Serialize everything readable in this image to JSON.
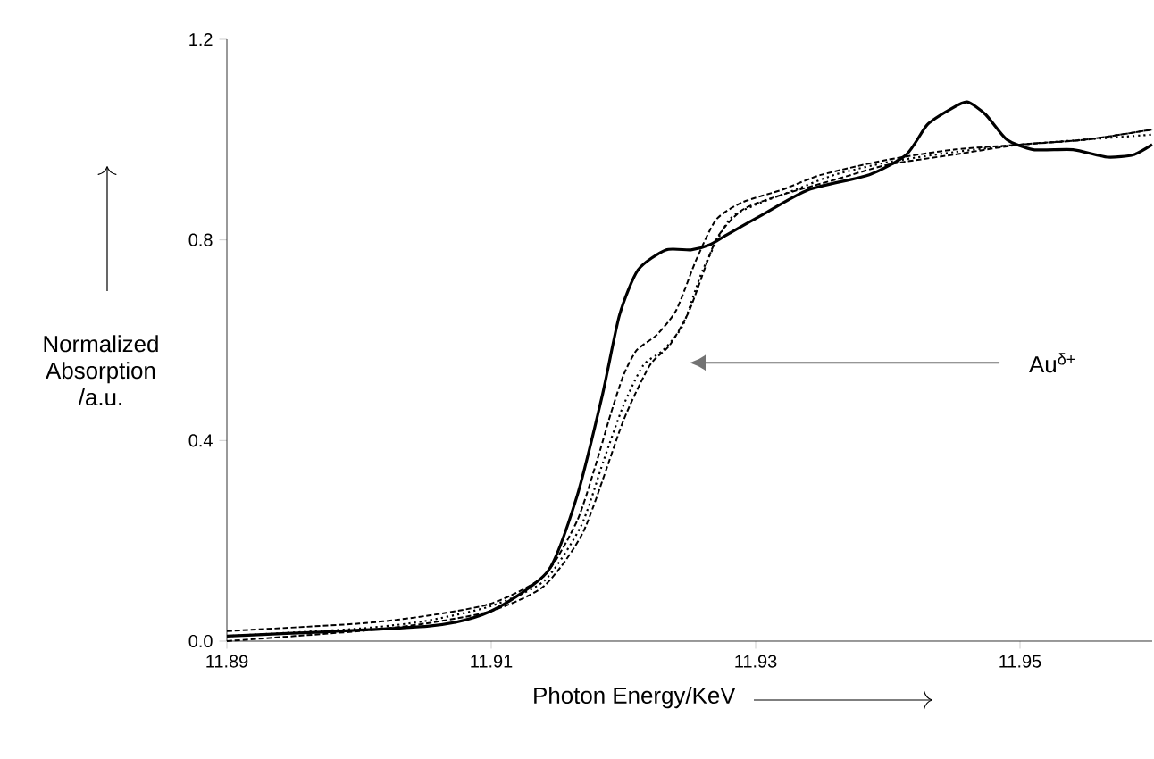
{
  "chart_data": {
    "type": "line",
    "xlabel": "Photon Energy/KeV",
    "ylabel": "Normalized Absorption /a.u.",
    "xlim": [
      11.89,
      11.96
    ],
    "xticks": [
      11.89,
      11.91,
      11.93,
      11.95
    ],
    "ylim": [
      0,
      1.2
    ],
    "yticks": [
      {
        "value": 0,
        "label": "0.0"
      },
      {
        "value": 0.4,
        "label": "0.4"
      },
      {
        "value": 0.8,
        "label": "0.8"
      },
      {
        "value": 1.2,
        "label": "1.2"
      }
    ],
    "grid": false,
    "marker": "none",
    "annotations": [
      "Au$^{δ+}$"
    ],
    "series": [
      {
        "color": "#000000",
        "line_style": "solid",
        "x": [
          11.89,
          11.9053,
          11.91,
          11.9143,
          11.9165,
          11.9184,
          11.9197,
          11.9211,
          11.9232,
          11.9251,
          11.9265,
          11.9278,
          11.9305,
          11.934,
          11.9386,
          11.9414,
          11.943,
          11.9447,
          11.946,
          11.9474,
          11.949,
          11.951,
          11.954,
          11.9566,
          11.9586,
          11.96
        ],
        "values": [
          0.01,
          0.03,
          0.06,
          0.14,
          0.29,
          0.49,
          0.65,
          0.74,
          0.78,
          0.78,
          0.79,
          0.81,
          0.85,
          0.9,
          0.93,
          0.97,
          1.03,
          1.06,
          1.075,
          1.05,
          1.0,
          0.98,
          0.98,
          0.965,
          0.97,
          0.99
        ]
      },
      {
        "color": "#000000",
        "line_style": "dashed",
        "x": [
          11.89,
          11.9,
          11.905,
          11.91,
          11.914,
          11.9165,
          11.918,
          11.919,
          11.92,
          11.921,
          11.9225,
          11.924,
          11.9255,
          11.927,
          11.929,
          11.932,
          11.935,
          11.94,
          11.945,
          11.95,
          11.955,
          11.96
        ],
        "values": [
          0.02,
          0.035,
          0.05,
          0.075,
          0.13,
          0.24,
          0.36,
          0.45,
          0.53,
          0.58,
          0.61,
          0.66,
          0.76,
          0.84,
          0.875,
          0.9,
          0.93,
          0.96,
          0.98,
          0.99,
          1.0,
          1.02
        ]
      },
      {
        "color": "#000000",
        "line_style": "dotted",
        "x": [
          11.89,
          11.9,
          11.905,
          11.91,
          11.914,
          11.9168,
          11.9185,
          11.92,
          11.9215,
          11.923,
          11.9245,
          11.926,
          11.928,
          11.93,
          11.933,
          11.936,
          11.94,
          11.945,
          11.95,
          11.955,
          11.96
        ],
        "values": [
          0.01,
          0.025,
          0.04,
          0.07,
          0.12,
          0.23,
          0.36,
          0.47,
          0.55,
          0.58,
          0.63,
          0.74,
          0.84,
          0.87,
          0.9,
          0.93,
          0.955,
          0.975,
          0.99,
          1.0,
          1.01
        ]
      },
      {
        "color": "#000000",
        "line_style": "dashed",
        "x": [
          11.89,
          11.9,
          11.905,
          11.91,
          11.914,
          11.917,
          11.92,
          11.922,
          11.9235,
          11.925,
          11.927,
          11.929,
          11.932,
          11.936,
          11.94,
          11.945,
          11.95,
          11.955,
          11.96
        ],
        "values": [
          0.0,
          0.02,
          0.035,
          0.06,
          0.11,
          0.22,
          0.44,
          0.55,
          0.59,
          0.66,
          0.8,
          0.86,
          0.89,
          0.92,
          0.95,
          0.97,
          0.99,
          1.0,
          1.02
        ]
      }
    ]
  }
}
